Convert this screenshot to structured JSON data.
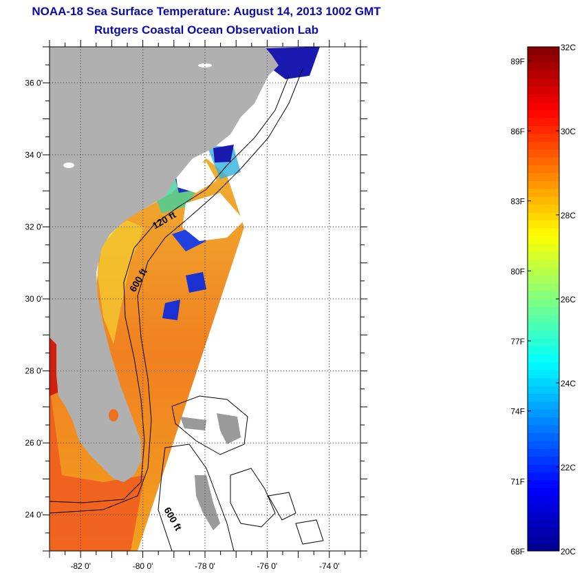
{
  "header": {
    "title": "NOAA-18 Sea Surface Temperature:  August 14, 2013 1002 GMT",
    "subtitle": "Rutgers Coastal Ocean Observation Lab"
  },
  "map": {
    "lon_range": [
      -83,
      -73
    ],
    "lat_range": [
      23,
      37
    ],
    "lat_ticks": [
      {
        "value": 24,
        "label": "24 0'"
      },
      {
        "value": 26,
        "label": "26 0'"
      },
      {
        "value": 28,
        "label": "28 0'"
      },
      {
        "value": 30,
        "label": "30 0'"
      },
      {
        "value": 32,
        "label": "32 0'"
      },
      {
        "value": 34,
        "label": "34 0'"
      },
      {
        "value": 36,
        "label": "36 0'"
      }
    ],
    "lon_ticks": [
      {
        "value": -82,
        "label": "-82 0'"
      },
      {
        "value": -80,
        "label": "-80 0'"
      },
      {
        "value": -78,
        "label": "-78 0'"
      },
      {
        "value": -76,
        "label": "-76 0'"
      },
      {
        "value": -74,
        "label": "-74 0'"
      }
    ],
    "contour_labels": [
      "120 ft",
      "600 ft",
      "600 ft"
    ],
    "colors": {
      "land": "#b0b0b0",
      "background": "#ffffff",
      "grid": "#333333"
    }
  },
  "colorbar": {
    "min_c": 20,
    "max_c": 32,
    "celsius_ticks": [
      {
        "value": 32,
        "label": "32C"
      },
      {
        "value": 30,
        "label": "30C"
      },
      {
        "value": 28,
        "label": "28C"
      },
      {
        "value": 26,
        "label": "26C"
      },
      {
        "value": 24,
        "label": "24C"
      },
      {
        "value": 22,
        "label": "22C"
      },
      {
        "value": 20,
        "label": "20C"
      }
    ],
    "fahrenheit_ticks": [
      {
        "value": 89,
        "label": "89F"
      },
      {
        "value": 86,
        "label": "86F"
      },
      {
        "value": 83,
        "label": "83F"
      },
      {
        "value": 80,
        "label": "80F"
      },
      {
        "value": 77,
        "label": "77F"
      },
      {
        "value": 74,
        "label": "74F"
      },
      {
        "value": 71,
        "label": "71F"
      },
      {
        "value": 68,
        "label": "68F"
      }
    ],
    "color_stops": [
      "#00008c",
      "#0000ff",
      "#0080ff",
      "#00ffff",
      "#80ff80",
      "#ffff00",
      "#ff8000",
      "#ff0000",
      "#800000"
    ]
  }
}
